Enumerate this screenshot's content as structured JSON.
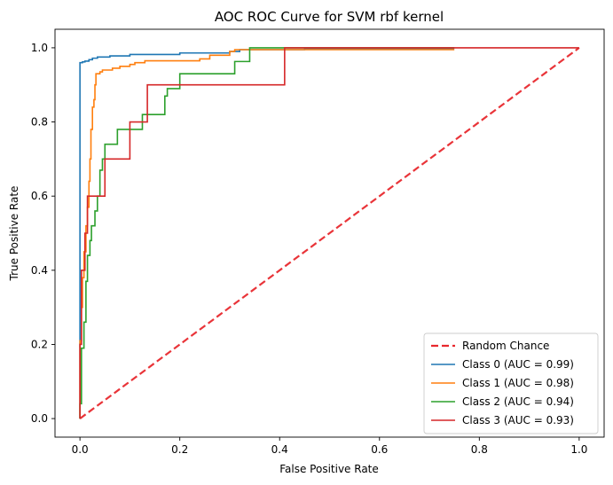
{
  "chart_data": {
    "type": "line",
    "title": "AOC ROC Curve for SVM rbf kernel",
    "xlabel": "False Positive Rate",
    "ylabel": "True Positive Rate",
    "xlim": [
      -0.05,
      1.05
    ],
    "ylim": [
      -0.05,
      1.05
    ],
    "xticks": [
      "0.0",
      "0.2",
      "0.4",
      "0.6",
      "0.8",
      "1.0"
    ],
    "yticks": [
      "0.0",
      "0.2",
      "0.4",
      "0.6",
      "0.8",
      "1.0"
    ],
    "grid": false,
    "legend_position": "lower-right",
    "baseline": {
      "name": "Random Chance",
      "color": "#e8292e",
      "dashed": true,
      "x": [
        0,
        1
      ],
      "y": [
        0,
        1
      ]
    },
    "series": [
      {
        "name": "Class 0 (AUC = 0.99)",
        "color": "#1f77b4",
        "points": [
          [
            0,
            0
          ],
          [
            0,
            0.29
          ],
          [
            0,
            0.96
          ],
          [
            0.005,
            0.96
          ],
          [
            0.005,
            0.962
          ],
          [
            0.01,
            0.962
          ],
          [
            0.01,
            0.964
          ],
          [
            0.018,
            0.964
          ],
          [
            0.018,
            0.968
          ],
          [
            0.025,
            0.968
          ],
          [
            0.025,
            0.972
          ],
          [
            0.035,
            0.972
          ],
          [
            0.035,
            0.975
          ],
          [
            0.06,
            0.975
          ],
          [
            0.06,
            0.978
          ],
          [
            0.1,
            0.978
          ],
          [
            0.1,
            0.982
          ],
          [
            0.2,
            0.982
          ],
          [
            0.2,
            0.986
          ],
          [
            0.3,
            0.986
          ],
          [
            0.3,
            0.99
          ],
          [
            0.32,
            0.99
          ],
          [
            0.32,
            0.995
          ],
          [
            0.45,
            0.995
          ],
          [
            0.45,
            0.998
          ],
          [
            0.75,
            0.998
          ]
        ]
      },
      {
        "name": "Class 1 (AUC = 0.98)",
        "color": "#ff7f0e",
        "points": [
          [
            0,
            0
          ],
          [
            0,
            0.21
          ],
          [
            0.003,
            0.21
          ],
          [
            0.003,
            0.3
          ],
          [
            0.005,
            0.3
          ],
          [
            0.005,
            0.38
          ],
          [
            0.008,
            0.38
          ],
          [
            0.008,
            0.45
          ],
          [
            0.012,
            0.45
          ],
          [
            0.012,
            0.52
          ],
          [
            0.015,
            0.52
          ],
          [
            0.015,
            0.57
          ],
          [
            0.018,
            0.57
          ],
          [
            0.018,
            0.64
          ],
          [
            0.02,
            0.64
          ],
          [
            0.02,
            0.7
          ],
          [
            0.022,
            0.7
          ],
          [
            0.022,
            0.78
          ],
          [
            0.025,
            0.78
          ],
          [
            0.025,
            0.84
          ],
          [
            0.028,
            0.84
          ],
          [
            0.028,
            0.86
          ],
          [
            0.03,
            0.86
          ],
          [
            0.03,
            0.9
          ],
          [
            0.032,
            0.9
          ],
          [
            0.032,
            0.93
          ],
          [
            0.04,
            0.93
          ],
          [
            0.04,
            0.935
          ],
          [
            0.045,
            0.935
          ],
          [
            0.045,
            0.94
          ],
          [
            0.065,
            0.94
          ],
          [
            0.065,
            0.945
          ],
          [
            0.08,
            0.945
          ],
          [
            0.08,
            0.95
          ],
          [
            0.1,
            0.95
          ],
          [
            0.1,
            0.955
          ],
          [
            0.11,
            0.955
          ],
          [
            0.11,
            0.96
          ],
          [
            0.13,
            0.96
          ],
          [
            0.13,
            0.965
          ],
          [
            0.24,
            0.965
          ],
          [
            0.24,
            0.97
          ],
          [
            0.26,
            0.97
          ],
          [
            0.26,
            0.98
          ],
          [
            0.3,
            0.98
          ],
          [
            0.3,
            0.99
          ],
          [
            0.31,
            0.99
          ],
          [
            0.31,
            0.995
          ],
          [
            0.75,
            0.995
          ]
        ]
      },
      {
        "name": "Class 2 (AUC = 0.94)",
        "color": "#2ca02c",
        "points": [
          [
            0,
            0
          ],
          [
            0,
            0.04
          ],
          [
            0.003,
            0.04
          ],
          [
            0.003,
            0.19
          ],
          [
            0.008,
            0.19
          ],
          [
            0.008,
            0.26
          ],
          [
            0.012,
            0.26
          ],
          [
            0.012,
            0.37
          ],
          [
            0.015,
            0.37
          ],
          [
            0.015,
            0.44
          ],
          [
            0.02,
            0.44
          ],
          [
            0.02,
            0.48
          ],
          [
            0.023,
            0.48
          ],
          [
            0.023,
            0.52
          ],
          [
            0.03,
            0.52
          ],
          [
            0.03,
            0.56
          ],
          [
            0.035,
            0.56
          ],
          [
            0.035,
            0.6
          ],
          [
            0.04,
            0.6
          ],
          [
            0.04,
            0.67
          ],
          [
            0.045,
            0.67
          ],
          [
            0.045,
            0.7
          ],
          [
            0.05,
            0.7
          ],
          [
            0.05,
            0.74
          ],
          [
            0.075,
            0.74
          ],
          [
            0.075,
            0.78
          ],
          [
            0.125,
            0.78
          ],
          [
            0.125,
            0.82
          ],
          [
            0.17,
            0.82
          ],
          [
            0.17,
            0.87
          ],
          [
            0.175,
            0.87
          ],
          [
            0.175,
            0.89
          ],
          [
            0.2,
            0.89
          ],
          [
            0.2,
            0.93
          ],
          [
            0.31,
            0.93
          ],
          [
            0.31,
            0.963
          ],
          [
            0.34,
            0.963
          ],
          [
            0.34,
            1.0
          ],
          [
            0.75,
            1.0
          ]
        ]
      },
      {
        "name": "Class 3 (AUC = 0.93)",
        "color": "#d62728",
        "points": [
          [
            0,
            0
          ],
          [
            0,
            0.2
          ],
          [
            0.003,
            0.2
          ],
          [
            0.003,
            0.4
          ],
          [
            0.01,
            0.4
          ],
          [
            0.01,
            0.5
          ],
          [
            0.015,
            0.5
          ],
          [
            0.015,
            0.6
          ],
          [
            0.05,
            0.6
          ],
          [
            0.05,
            0.7
          ],
          [
            0.1,
            0.7
          ],
          [
            0.1,
            0.8
          ],
          [
            0.135,
            0.8
          ],
          [
            0.135,
            0.9
          ],
          [
            0.41,
            0.9
          ],
          [
            0.41,
            1.0
          ],
          [
            1.0,
            1.0
          ]
        ]
      }
    ]
  }
}
